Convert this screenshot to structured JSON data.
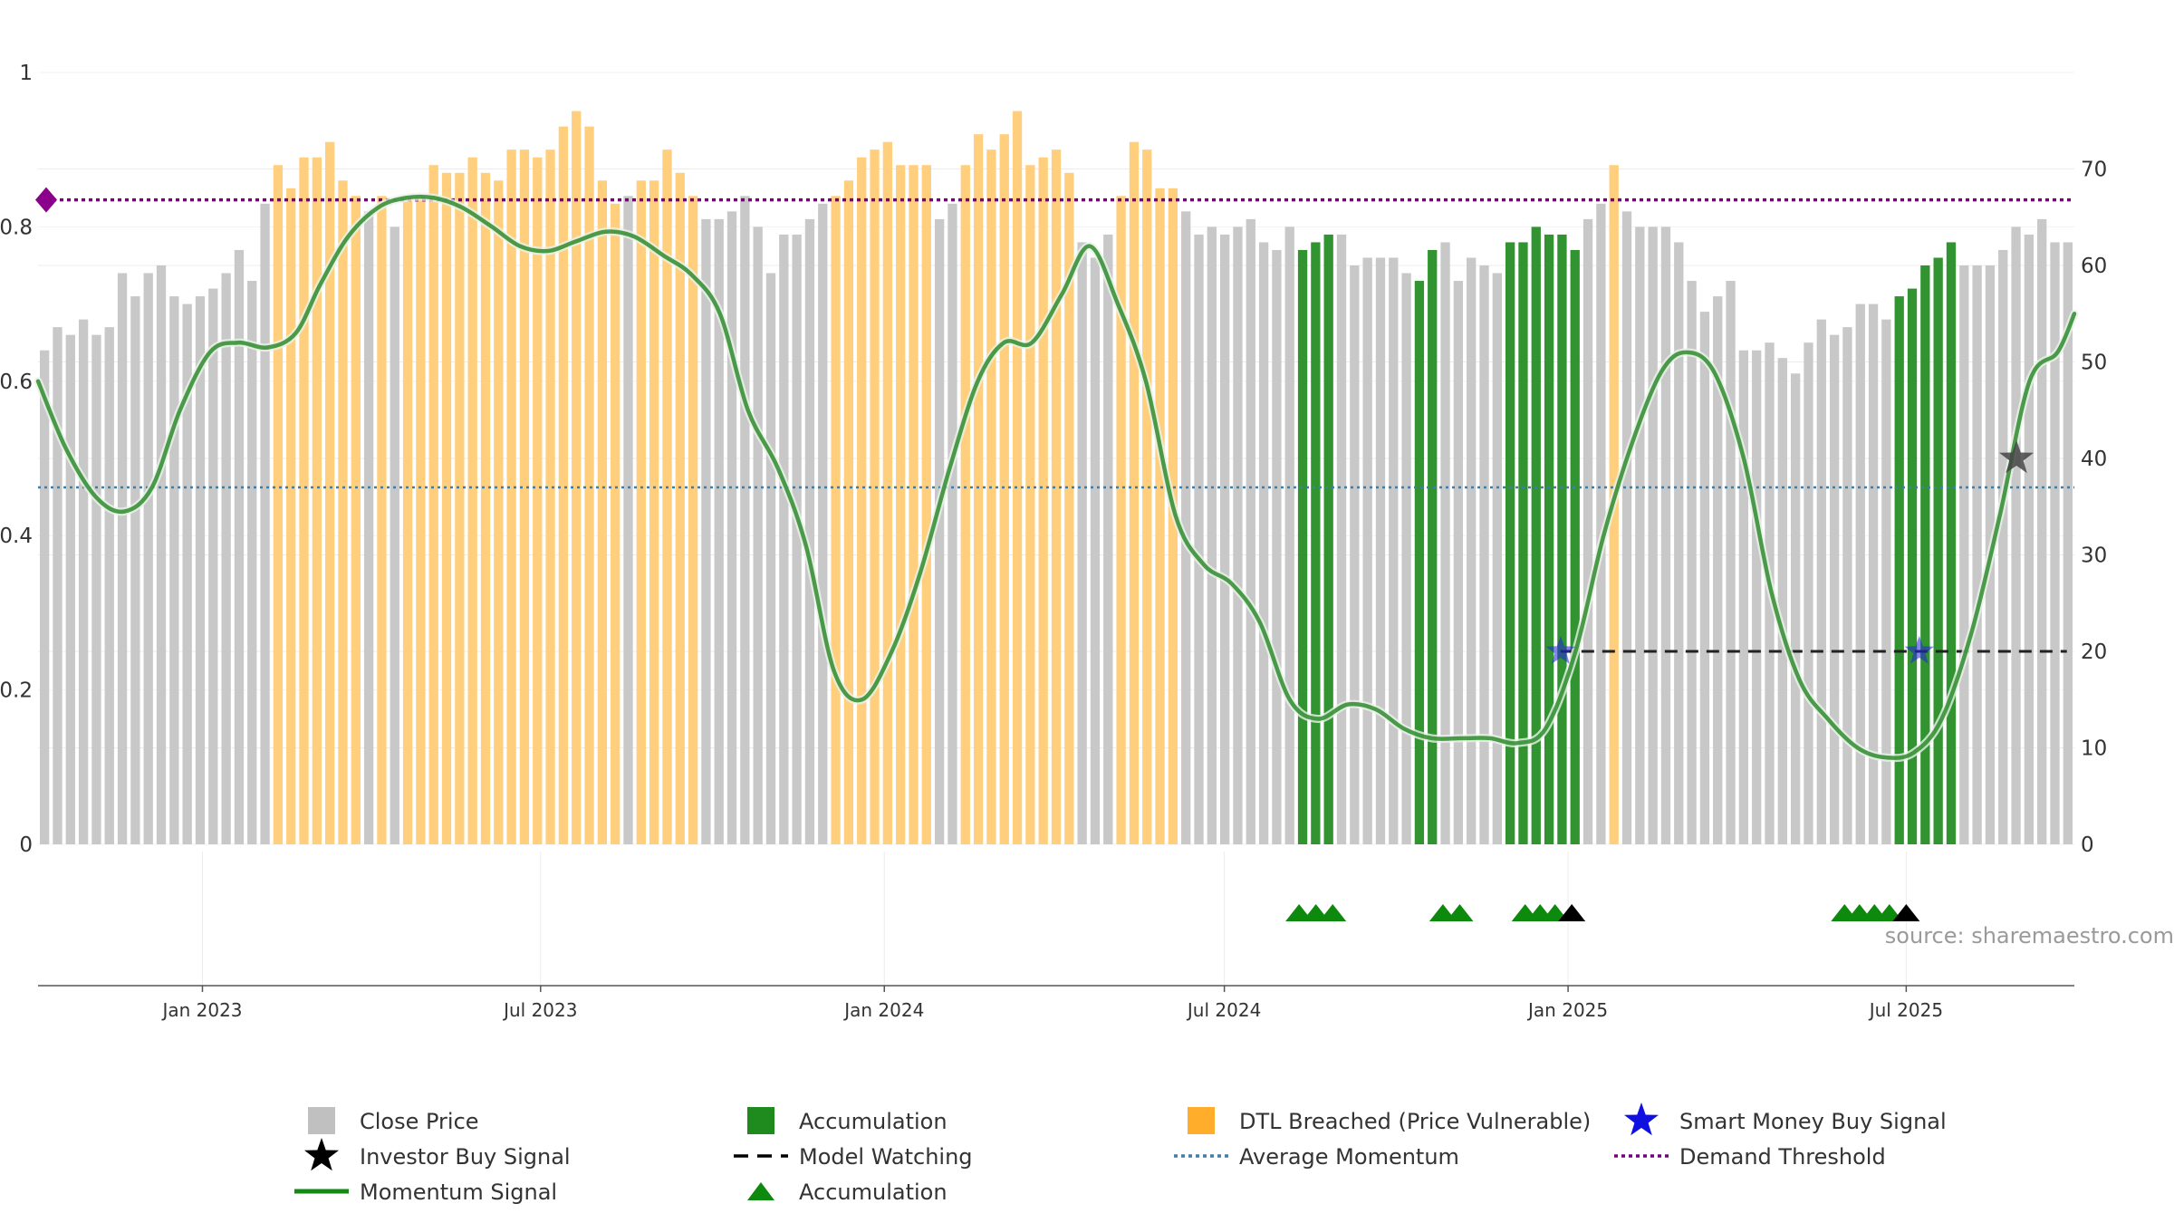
{
  "chart_data": {
    "type": "bar",
    "source_text": "source: sharemaestro.com",
    "left_axis": {
      "ylim": [
        0,
        1
      ],
      "ticks": [
        0,
        0.2,
        0.4,
        0.6,
        0.8,
        1
      ],
      "tick_labels": [
        "0",
        "0.2",
        "0.4",
        "0.6",
        "0.8",
        "1"
      ]
    },
    "right_axis": {
      "ylim": [
        0,
        80
      ],
      "ticks": [
        0,
        10,
        20,
        30,
        40,
        50,
        60,
        70
      ],
      "tick_labels": [
        "0",
        "10",
        "20",
        "30",
        "40",
        "50",
        "60",
        "70"
      ]
    },
    "x_axis": {
      "range": [
        "2022-10-05",
        "2025-09-29"
      ],
      "ticks": [
        {
          "date": "2023-01-01",
          "label": "Jan 2023"
        },
        {
          "date": "2023-07-01",
          "label": "Jul 2023"
        },
        {
          "date": "2024-01-01",
          "label": "Jan 2024"
        },
        {
          "date": "2024-07-01",
          "label": "Jul 2024"
        },
        {
          "date": "2025-01-01",
          "label": "Jan 2025"
        },
        {
          "date": "2025-07-01",
          "label": "Jul 2025"
        }
      ]
    },
    "colors": {
      "close": "#c8c8c8",
      "accumulation": "#1f8b1f",
      "dtl": "#ffcf7e",
      "momentum": "#2e8b2e",
      "average": "#3d7fa8",
      "demand": "#7a007a",
      "smart_money": "#2222dd",
      "investor": "#444444",
      "model_watching": "#222222"
    },
    "bars": {
      "values": [
        0.64,
        0.67,
        0.66,
        0.68,
        0.66,
        0.67,
        0.74,
        0.71,
        0.74,
        0.75,
        0.71,
        0.7,
        0.71,
        0.72,
        0.74,
        0.77,
        0.73,
        0.83,
        0.88,
        0.85,
        0.89,
        0.89,
        0.91,
        0.86,
        0.84,
        0.82,
        0.84,
        0.8,
        0.84,
        0.84,
        0.88,
        0.87,
        0.87,
        0.89,
        0.87,
        0.86,
        0.9,
        0.9,
        0.89,
        0.9,
        0.93,
        0.95,
        0.93,
        0.86,
        0.83,
        0.84,
        0.86,
        0.86,
        0.9,
        0.87,
        0.84,
        0.81,
        0.81,
        0.82,
        0.84,
        0.8,
        0.74,
        0.79,
        0.79,
        0.81,
        0.83,
        0.84,
        0.86,
        0.89,
        0.9,
        0.91,
        0.88,
        0.88,
        0.88,
        0.81,
        0.83,
        0.88,
        0.92,
        0.9,
        0.92,
        0.95,
        0.88,
        0.89,
        0.9,
        0.87,
        0.78,
        0.76,
        0.79,
        0.84,
        0.91,
        0.9,
        0.85,
        0.85,
        0.82,
        0.79,
        0.8,
        0.79,
        0.8,
        0.81,
        0.78,
        0.77,
        0.8,
        0.77,
        0.78,
        0.79,
        0.79,
        0.75,
        0.76,
        0.76,
        0.76,
        0.74,
        0.73,
        0.77,
        0.78,
        0.73,
        0.76,
        0.75,
        0.74,
        0.78,
        0.78,
        0.8,
        0.79,
        0.79,
        0.77,
        0.81,
        0.83,
        0.88,
        0.82,
        0.8,
        0.8,
        0.8,
        0.78,
        0.73,
        0.69,
        0.71,
        0.73,
        0.64,
        0.64,
        0.65,
        0.63,
        0.61,
        0.65,
        0.68,
        0.66,
        0.67,
        0.7,
        0.7,
        0.68,
        0.71,
        0.72,
        0.75,
        0.76,
        0.78,
        0.75,
        0.75,
        0.75,
        0.77,
        0.8,
        0.79,
        0.81,
        0.78,
        0.78
      ],
      "category": [
        "c",
        "c",
        "c",
        "c",
        "c",
        "c",
        "c",
        "c",
        "c",
        "c",
        "c",
        "c",
        "c",
        "c",
        "c",
        "c",
        "c",
        "c",
        "d",
        "d",
        "d",
        "d",
        "d",
        "d",
        "d",
        "c",
        "d",
        "c",
        "d",
        "d",
        "d",
        "d",
        "d",
        "d",
        "d",
        "d",
        "d",
        "d",
        "d",
        "d",
        "d",
        "d",
        "d",
        "d",
        "d",
        "c",
        "d",
        "d",
        "d",
        "d",
        "d",
        "c",
        "c",
        "c",
        "c",
        "c",
        "c",
        "c",
        "c",
        "c",
        "c",
        "d",
        "d",
        "d",
        "d",
        "d",
        "d",
        "d",
        "d",
        "c",
        "c",
        "d",
        "d",
        "d",
        "d",
        "d",
        "d",
        "d",
        "d",
        "d",
        "c",
        "c",
        "c",
        "d",
        "d",
        "d",
        "d",
        "d",
        "c",
        "c",
        "c",
        "c",
        "c",
        "c",
        "c",
        "c",
        "c",
        "a",
        "a",
        "a",
        "c",
        "c",
        "c",
        "c",
        "c",
        "c",
        "a",
        "a",
        "c",
        "c",
        "c",
        "c",
        "c",
        "a",
        "a",
        "a",
        "a",
        "a",
        "a",
        "c",
        "c",
        "d",
        "c",
        "c",
        "c",
        "c",
        "c",
        "c",
        "c",
        "c",
        "c",
        "c",
        "c",
        "c",
        "c",
        "c",
        "c",
        "c",
        "c",
        "c",
        "c",
        "c",
        "c",
        "a",
        "a",
        "a",
        "a",
        "a",
        "c",
        "c",
        "c",
        "c",
        "c",
        "c",
        "c",
        "c",
        "c"
      ]
    },
    "momentum": {
      "x": [
        "2022-10-05",
        "2022-10-20",
        "2022-11-05",
        "2022-11-20",
        "2022-12-05",
        "2022-12-20",
        "2023-01-05",
        "2023-01-20",
        "2023-02-05",
        "2023-02-20",
        "2023-03-05",
        "2023-03-20",
        "2023-04-05",
        "2023-04-20",
        "2023-05-05",
        "2023-05-20",
        "2023-06-05",
        "2023-06-20",
        "2023-07-05",
        "2023-07-20",
        "2023-08-05",
        "2023-08-20",
        "2023-09-05",
        "2023-09-20",
        "2023-10-05",
        "2023-10-20",
        "2023-11-05",
        "2023-11-20",
        "2023-12-05",
        "2023-12-20",
        "2024-01-05",
        "2024-01-20",
        "2024-02-05",
        "2024-02-20",
        "2024-03-05",
        "2024-03-20",
        "2024-04-05",
        "2024-04-20",
        "2024-05-05",
        "2024-05-20",
        "2024-06-05",
        "2024-06-20",
        "2024-07-05",
        "2024-07-20",
        "2024-08-05",
        "2024-08-20",
        "2024-09-05",
        "2024-09-20",
        "2024-10-05",
        "2024-10-20",
        "2024-11-05",
        "2024-11-20",
        "2024-12-05",
        "2024-12-20",
        "2025-01-05",
        "2025-01-20",
        "2025-02-05",
        "2025-02-20",
        "2025-03-05",
        "2025-03-20",
        "2025-04-05",
        "2025-04-20",
        "2025-05-05",
        "2025-05-20",
        "2025-06-05",
        "2025-06-20",
        "2025-07-05",
        "2025-07-20",
        "2025-08-05",
        "2025-08-20",
        "2025-09-05",
        "2025-09-20",
        "2025-09-29"
      ],
      "y": [
        48,
        41,
        36,
        34.5,
        37,
        45,
        51,
        52,
        51.5,
        53,
        58,
        63,
        66,
        67,
        67,
        66,
        64,
        62,
        61.5,
        62.5,
        63.5,
        63,
        61,
        59,
        55,
        45,
        39,
        31,
        18,
        15,
        20,
        28,
        39,
        48,
        52,
        52,
        57,
        62,
        56,
        48,
        34,
        29,
        27,
        23,
        15,
        13,
        14.5,
        14,
        12,
        11,
        11,
        11,
        10.5,
        12,
        20,
        32,
        42,
        49,
        51,
        49,
        40,
        26,
        17,
        13,
        10,
        9,
        9.5,
        13,
        22,
        34,
        48,
        51,
        55
      ],
      "ylim_axis": "right"
    },
    "average_momentum": 37,
    "demand_threshold": 0.835,
    "model_watching": {
      "start": "2024-12-28",
      "end": "2025-09-25",
      "value": 20
    },
    "smart_money_buy_signal": [
      {
        "x": "2024-12-28",
        "y": 20
      },
      {
        "x": "2025-07-08",
        "y": 20
      }
    ],
    "investor_buy_signal": [
      {
        "x": "2025-08-29",
        "y": 40
      }
    ],
    "accumulation_markers": {
      "green": [
        "2024-08-10",
        "2024-08-19",
        "2024-08-28",
        "2024-10-26",
        "2024-11-04",
        "2024-12-09",
        "2024-12-17",
        "2024-12-25",
        "2025-05-29",
        "2025-06-06",
        "2025-06-14",
        "2025-06-22"
      ],
      "black": [
        "2025-01-03",
        "2025-07-01"
      ]
    },
    "legend": {
      "placement": "bottom",
      "items": [
        {
          "label": "Close Price",
          "symbol": "square-gray"
        },
        {
          "label": "Accumulation",
          "symbol": "square-green"
        },
        {
          "label": "DTL Breached (Price Vulnerable)",
          "symbol": "square-orange"
        },
        {
          "label": "Smart Money Buy Signal",
          "symbol": "star-blue"
        },
        {
          "label": "Investor Buy Signal",
          "symbol": "star-black"
        },
        {
          "label": "Model Watching",
          "symbol": "dash-black"
        },
        {
          "label": "Average Momentum",
          "symbol": "dot-blue"
        },
        {
          "label": "Demand Threshold",
          "symbol": "dot-purple"
        },
        {
          "label": "Momentum Signal",
          "symbol": "line-green"
        },
        {
          "label": "Accumulation",
          "symbol": "triangle-green"
        }
      ]
    }
  }
}
